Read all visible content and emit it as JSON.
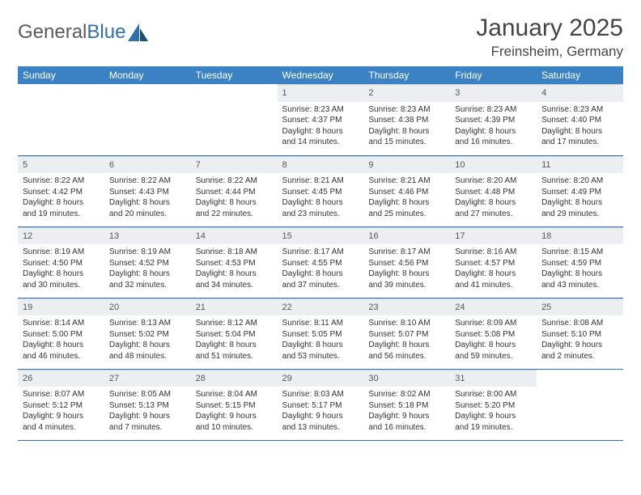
{
  "logo": {
    "text1": "General",
    "text2": "Blue"
  },
  "title": "January 2025",
  "location": "Freinsheim, Germany",
  "headers": [
    "Sunday",
    "Monday",
    "Tuesday",
    "Wednesday",
    "Thursday",
    "Friday",
    "Saturday"
  ],
  "colors": {
    "header_bg": "#3b82c4",
    "header_text": "#ffffff",
    "daynum_bg": "#eceff1",
    "row_border": "#2f6fb0",
    "logo_gray": "#5a5a5a",
    "logo_blue": "#2f6fb0"
  },
  "weeks": [
    [
      {
        "empty": true
      },
      {
        "empty": true
      },
      {
        "empty": true
      },
      {
        "num": "1",
        "sunrise": "Sunrise: 8:23 AM",
        "sunset": "Sunset: 4:37 PM",
        "daylight1": "Daylight: 8 hours",
        "daylight2": "and 14 minutes."
      },
      {
        "num": "2",
        "sunrise": "Sunrise: 8:23 AM",
        "sunset": "Sunset: 4:38 PM",
        "daylight1": "Daylight: 8 hours",
        "daylight2": "and 15 minutes."
      },
      {
        "num": "3",
        "sunrise": "Sunrise: 8:23 AM",
        "sunset": "Sunset: 4:39 PM",
        "daylight1": "Daylight: 8 hours",
        "daylight2": "and 16 minutes."
      },
      {
        "num": "4",
        "sunrise": "Sunrise: 8:23 AM",
        "sunset": "Sunset: 4:40 PM",
        "daylight1": "Daylight: 8 hours",
        "daylight2": "and 17 minutes."
      }
    ],
    [
      {
        "num": "5",
        "sunrise": "Sunrise: 8:22 AM",
        "sunset": "Sunset: 4:42 PM",
        "daylight1": "Daylight: 8 hours",
        "daylight2": "and 19 minutes."
      },
      {
        "num": "6",
        "sunrise": "Sunrise: 8:22 AM",
        "sunset": "Sunset: 4:43 PM",
        "daylight1": "Daylight: 8 hours",
        "daylight2": "and 20 minutes."
      },
      {
        "num": "7",
        "sunrise": "Sunrise: 8:22 AM",
        "sunset": "Sunset: 4:44 PM",
        "daylight1": "Daylight: 8 hours",
        "daylight2": "and 22 minutes."
      },
      {
        "num": "8",
        "sunrise": "Sunrise: 8:21 AM",
        "sunset": "Sunset: 4:45 PM",
        "daylight1": "Daylight: 8 hours",
        "daylight2": "and 23 minutes."
      },
      {
        "num": "9",
        "sunrise": "Sunrise: 8:21 AM",
        "sunset": "Sunset: 4:46 PM",
        "daylight1": "Daylight: 8 hours",
        "daylight2": "and 25 minutes."
      },
      {
        "num": "10",
        "sunrise": "Sunrise: 8:20 AM",
        "sunset": "Sunset: 4:48 PM",
        "daylight1": "Daylight: 8 hours",
        "daylight2": "and 27 minutes."
      },
      {
        "num": "11",
        "sunrise": "Sunrise: 8:20 AM",
        "sunset": "Sunset: 4:49 PM",
        "daylight1": "Daylight: 8 hours",
        "daylight2": "and 29 minutes."
      }
    ],
    [
      {
        "num": "12",
        "sunrise": "Sunrise: 8:19 AM",
        "sunset": "Sunset: 4:50 PM",
        "daylight1": "Daylight: 8 hours",
        "daylight2": "and 30 minutes."
      },
      {
        "num": "13",
        "sunrise": "Sunrise: 8:19 AM",
        "sunset": "Sunset: 4:52 PM",
        "daylight1": "Daylight: 8 hours",
        "daylight2": "and 32 minutes."
      },
      {
        "num": "14",
        "sunrise": "Sunrise: 8:18 AM",
        "sunset": "Sunset: 4:53 PM",
        "daylight1": "Daylight: 8 hours",
        "daylight2": "and 34 minutes."
      },
      {
        "num": "15",
        "sunrise": "Sunrise: 8:17 AM",
        "sunset": "Sunset: 4:55 PM",
        "daylight1": "Daylight: 8 hours",
        "daylight2": "and 37 minutes."
      },
      {
        "num": "16",
        "sunrise": "Sunrise: 8:17 AM",
        "sunset": "Sunset: 4:56 PM",
        "daylight1": "Daylight: 8 hours",
        "daylight2": "and 39 minutes."
      },
      {
        "num": "17",
        "sunrise": "Sunrise: 8:16 AM",
        "sunset": "Sunset: 4:57 PM",
        "daylight1": "Daylight: 8 hours",
        "daylight2": "and 41 minutes."
      },
      {
        "num": "18",
        "sunrise": "Sunrise: 8:15 AM",
        "sunset": "Sunset: 4:59 PM",
        "daylight1": "Daylight: 8 hours",
        "daylight2": "and 43 minutes."
      }
    ],
    [
      {
        "num": "19",
        "sunrise": "Sunrise: 8:14 AM",
        "sunset": "Sunset: 5:00 PM",
        "daylight1": "Daylight: 8 hours",
        "daylight2": "and 46 minutes."
      },
      {
        "num": "20",
        "sunrise": "Sunrise: 8:13 AM",
        "sunset": "Sunset: 5:02 PM",
        "daylight1": "Daylight: 8 hours",
        "daylight2": "and 48 minutes."
      },
      {
        "num": "21",
        "sunrise": "Sunrise: 8:12 AM",
        "sunset": "Sunset: 5:04 PM",
        "daylight1": "Daylight: 8 hours",
        "daylight2": "and 51 minutes."
      },
      {
        "num": "22",
        "sunrise": "Sunrise: 8:11 AM",
        "sunset": "Sunset: 5:05 PM",
        "daylight1": "Daylight: 8 hours",
        "daylight2": "and 53 minutes."
      },
      {
        "num": "23",
        "sunrise": "Sunrise: 8:10 AM",
        "sunset": "Sunset: 5:07 PM",
        "daylight1": "Daylight: 8 hours",
        "daylight2": "and 56 minutes."
      },
      {
        "num": "24",
        "sunrise": "Sunrise: 8:09 AM",
        "sunset": "Sunset: 5:08 PM",
        "daylight1": "Daylight: 8 hours",
        "daylight2": "and 59 minutes."
      },
      {
        "num": "25",
        "sunrise": "Sunrise: 8:08 AM",
        "sunset": "Sunset: 5:10 PM",
        "daylight1": "Daylight: 9 hours",
        "daylight2": "and 2 minutes."
      }
    ],
    [
      {
        "num": "26",
        "sunrise": "Sunrise: 8:07 AM",
        "sunset": "Sunset: 5:12 PM",
        "daylight1": "Daylight: 9 hours",
        "daylight2": "and 4 minutes."
      },
      {
        "num": "27",
        "sunrise": "Sunrise: 8:05 AM",
        "sunset": "Sunset: 5:13 PM",
        "daylight1": "Daylight: 9 hours",
        "daylight2": "and 7 minutes."
      },
      {
        "num": "28",
        "sunrise": "Sunrise: 8:04 AM",
        "sunset": "Sunset: 5:15 PM",
        "daylight1": "Daylight: 9 hours",
        "daylight2": "and 10 minutes."
      },
      {
        "num": "29",
        "sunrise": "Sunrise: 8:03 AM",
        "sunset": "Sunset: 5:17 PM",
        "daylight1": "Daylight: 9 hours",
        "daylight2": "and 13 minutes."
      },
      {
        "num": "30",
        "sunrise": "Sunrise: 8:02 AM",
        "sunset": "Sunset: 5:18 PM",
        "daylight1": "Daylight: 9 hours",
        "daylight2": "and 16 minutes."
      },
      {
        "num": "31",
        "sunrise": "Sunrise: 8:00 AM",
        "sunset": "Sunset: 5:20 PM",
        "daylight1": "Daylight: 9 hours",
        "daylight2": "and 19 minutes."
      },
      {
        "empty": true
      }
    ]
  ]
}
